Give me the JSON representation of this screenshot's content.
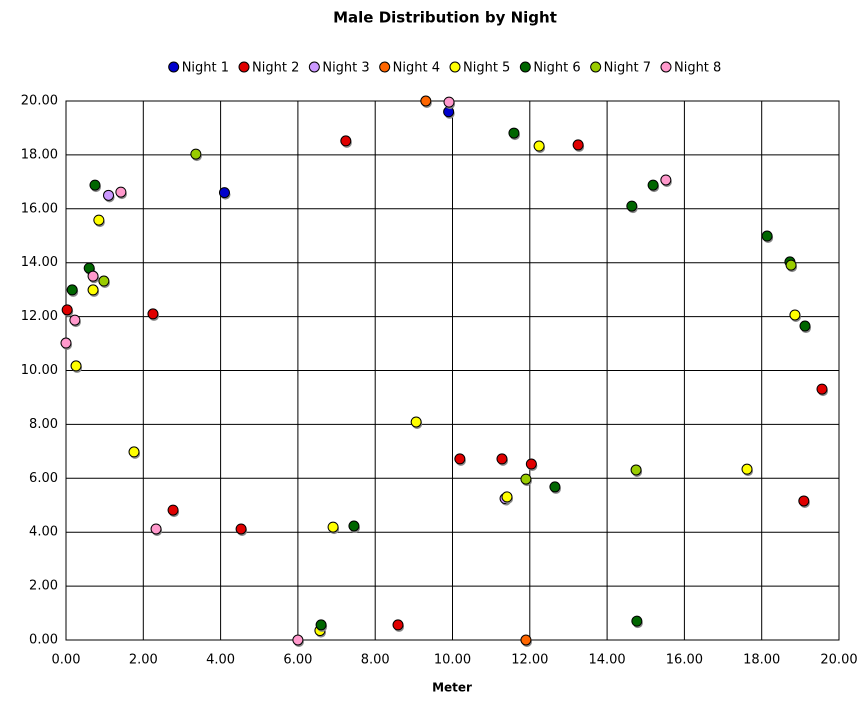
{
  "chart_data": {
    "type": "scatter",
    "title": "Male Distribution by Night",
    "x_label": "Meter",
    "xlim": [
      0,
      20
    ],
    "ylim": [
      0,
      20
    ],
    "grid": true,
    "legend": "top",
    "xticks": [
      {
        "value": 0,
        "label": "0.00"
      },
      {
        "value": 2,
        "label": "2.00"
      },
      {
        "value": 4,
        "label": "4.00"
      },
      {
        "value": 6,
        "label": "6.00"
      },
      {
        "value": 8,
        "label": "8.00"
      },
      {
        "value": 10,
        "label": "10.00"
      },
      {
        "value": 12,
        "label": "12.00"
      },
      {
        "value": 14,
        "label": "14.00"
      },
      {
        "value": 16,
        "label": "16.00"
      },
      {
        "value": 18,
        "label": "18.00"
      },
      {
        "value": 20,
        "label": "20.00"
      }
    ],
    "yticks": [
      {
        "value": 0,
        "label": "0.00"
      },
      {
        "value": 2,
        "label": "2.00"
      },
      {
        "value": 4,
        "label": "4.00"
      },
      {
        "value": 6,
        "label": "6.00"
      },
      {
        "value": 8,
        "label": "8.00"
      },
      {
        "value": 10,
        "label": "10.00"
      },
      {
        "value": 12,
        "label": "12.00"
      },
      {
        "value": 14,
        "label": "14.00"
      },
      {
        "value": 16,
        "label": "16.00"
      },
      {
        "value": 18,
        "label": "18.00"
      },
      {
        "value": 20,
        "label": "20.00"
      }
    ],
    "series": [
      {
        "name": "Night 1",
        "color": "#0000cc",
        "x": [
          4.1,
          9.9
        ],
        "y": [
          16.6,
          19.6
        ]
      },
      {
        "name": "Night 2",
        "color": "#e00000",
        "x": [
          0.03,
          2.25,
          2.77,
          4.53,
          7.24,
          8.59,
          10.19,
          11.28,
          12.04,
          13.25,
          19.56,
          19.09
        ],
        "y": [
          12.25,
          12.1,
          4.82,
          4.12,
          18.52,
          0.56,
          6.72,
          6.72,
          6.53,
          18.37,
          9.31,
          5.16
        ]
      },
      {
        "name": "Night 3",
        "color": "#cc99ff",
        "x": [
          1.1,
          11.36
        ],
        "y": [
          16.5,
          5.25
        ]
      },
      {
        "name": "Night 4",
        "color": "#ff6600",
        "x": [
          9.31,
          11.9
        ],
        "y": [
          20.0,
          0.0
        ]
      },
      {
        "name": "Night 5",
        "color": "#ffff00",
        "x": [
          0.85,
          0.7,
          0.26,
          1.76,
          6.57,
          6.91,
          9.06,
          11.41,
          12.24,
          17.62,
          18.86
        ],
        "y": [
          15.58,
          12.99,
          10.17,
          6.98,
          0.35,
          4.19,
          8.09,
          5.31,
          18.33,
          6.34,
          12.06
        ]
      },
      {
        "name": "Night 6",
        "color": "#006600",
        "x": [
          0.16,
          0.6,
          0.75,
          6.6,
          7.45,
          11.59,
          12.65,
          14.64,
          15.19,
          18.14,
          18.73,
          19.12,
          14.77
        ],
        "y": [
          12.99,
          13.8,
          16.88,
          0.56,
          4.23,
          18.81,
          5.68,
          16.1,
          16.88,
          14.99,
          14.03,
          11.65,
          0.7
        ]
      },
      {
        "name": "Night 7",
        "color": "#99cc00",
        "x": [
          3.36,
          0.98,
          11.9,
          14.75,
          18.76
        ],
        "y": [
          18.03,
          13.32,
          5.97,
          6.31,
          13.91
        ]
      },
      {
        "name": "Night 8",
        "color": "#ff99cc",
        "x": [
          0.0,
          0.23,
          0.7,
          1.42,
          2.33,
          6.0,
          9.91,
          15.52
        ],
        "y": [
          11.02,
          11.87,
          13.5,
          16.62,
          4.12,
          0.0,
          19.96,
          17.07
        ]
      }
    ]
  }
}
